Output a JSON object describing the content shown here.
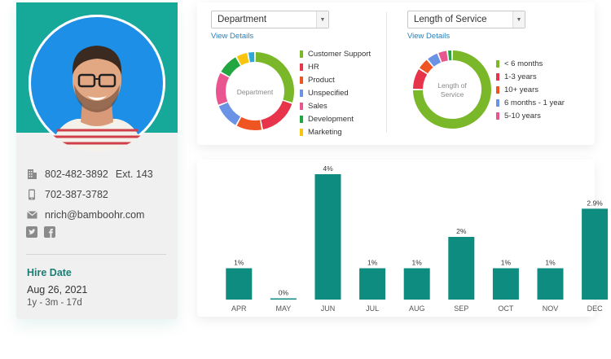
{
  "profile": {
    "phone_work": "802-482-3892",
    "phone_ext": "Ext. 143",
    "phone_mobile": "702-387-3782",
    "email": "nrich@bamboohr.com",
    "hire_label": "Hire Date",
    "hire_date": "Aug 26, 2021",
    "tenure": "1y - 3m - 17d"
  },
  "colors": {
    "teal": "#16a99a",
    "bar": "#0f8c80"
  },
  "department_widget": {
    "select_value": "Department",
    "view_details": "View Details",
    "center_label": "Department",
    "legend": [
      {
        "label": "Customer Support",
        "color": "#7ab829"
      },
      {
        "label": "HR",
        "color": "#e8344a"
      },
      {
        "label": "Product",
        "color": "#ef5423"
      },
      {
        "label": "Unspecified",
        "color": "#6a93e6"
      },
      {
        "label": "Sales",
        "color": "#e8558f"
      },
      {
        "label": "Development",
        "color": "#22a640"
      },
      {
        "label": "Marketing",
        "color": "#f7c50d"
      }
    ],
    "slices": [
      {
        "color": "#7ab829",
        "value": 30
      },
      {
        "color": "#e8344a",
        "value": 17
      },
      {
        "color": "#ef5423",
        "value": 11
      },
      {
        "color": "#6a93e6",
        "value": 11
      },
      {
        "color": "#e8558f",
        "value": 14
      },
      {
        "color": "#22a640",
        "value": 9
      },
      {
        "color": "#f7c50d",
        "value": 5
      },
      {
        "color": "#2fa8d8",
        "value": 3
      }
    ]
  },
  "service_widget": {
    "select_value": "Length of Service",
    "view_details": "View Details",
    "center_label_line1": "Length of",
    "center_label_line2": "Service",
    "legend": [
      {
        "label": "< 6 months",
        "color": "#7ab829"
      },
      {
        "label": "1-3 years",
        "color": "#e8344a"
      },
      {
        "label": "10+ years",
        "color": "#ef5423"
      },
      {
        "label": "6 months - 1 year",
        "color": "#6a93e6"
      },
      {
        "label": "5-10 years",
        "color": "#e8558f"
      }
    ],
    "slices": [
      {
        "color": "#7ab829",
        "value": 75
      },
      {
        "color": "#e8344a",
        "value": 9
      },
      {
        "color": "#ef5423",
        "value": 5
      },
      {
        "color": "#6a93e6",
        "value": 5
      },
      {
        "color": "#e8558f",
        "value": 4
      },
      {
        "color": "#22a640",
        "value": 2
      }
    ]
  },
  "chart_data": {
    "type": "bar",
    "categories": [
      "APR",
      "MAY",
      "JUN",
      "JUL",
      "AUG",
      "SEP",
      "OCT",
      "NOV",
      "DEC"
    ],
    "values": [
      1,
      0,
      4,
      1,
      1,
      2,
      1,
      1,
      2.9
    ],
    "data_labels": [
      "1%",
      "0%",
      "4%",
      "1%",
      "1%",
      "2%",
      "1%",
      "1%",
      "2.9%"
    ],
    "ylim": [
      0,
      4
    ],
    "grid": false,
    "title": "",
    "xlabel": "",
    "ylabel": ""
  }
}
